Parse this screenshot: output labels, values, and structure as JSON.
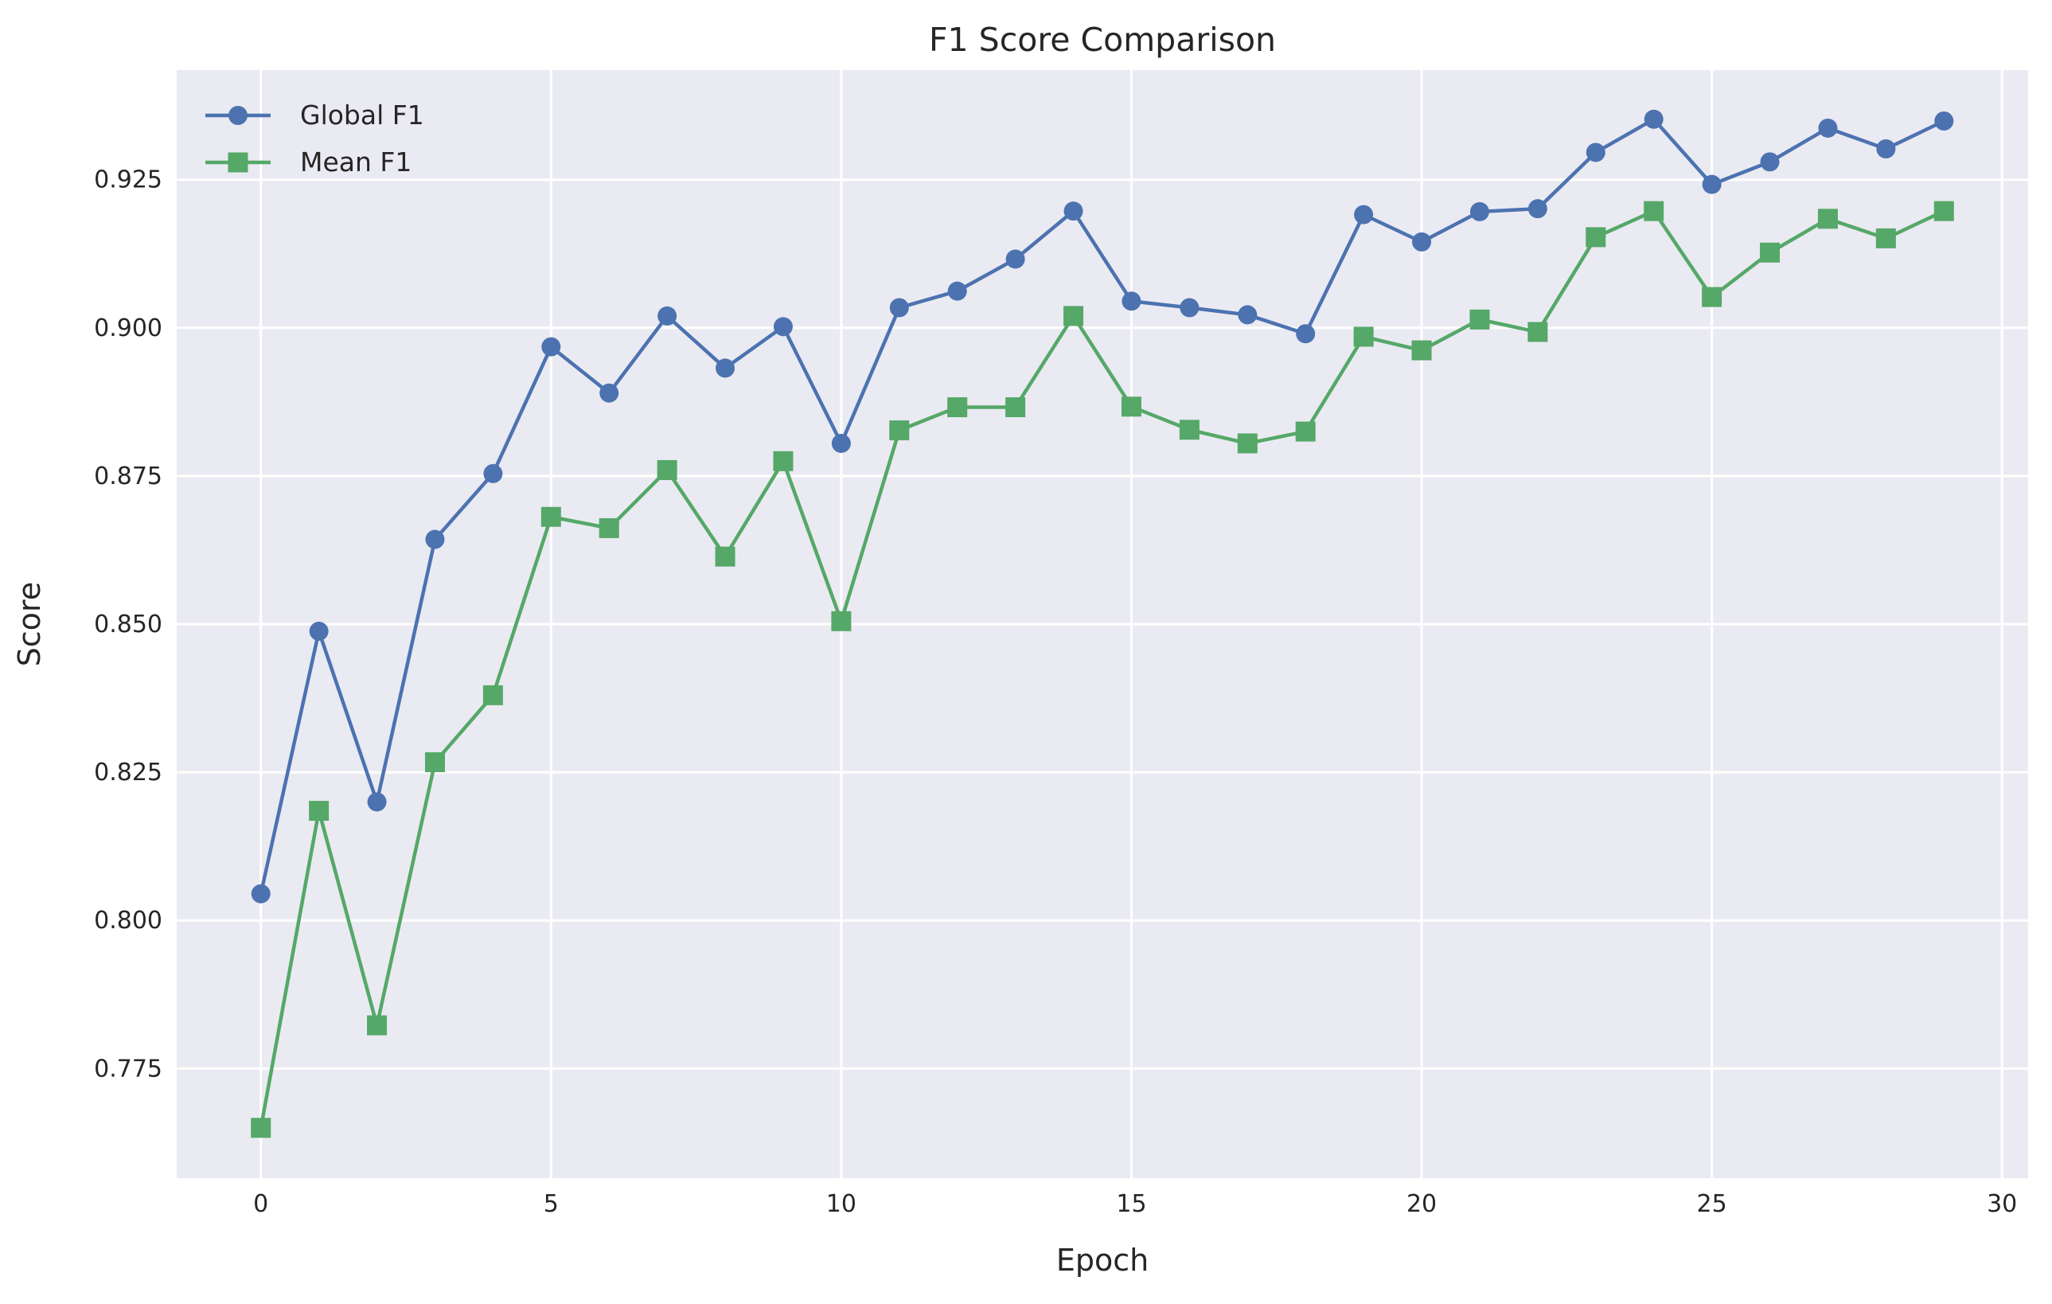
{
  "chart_data": {
    "type": "line",
    "title": "F1 Score Comparison",
    "xlabel": "Epoch",
    "ylabel": "Score",
    "xlim": [
      -1.45,
      30.45
    ],
    "ylim": [
      0.7565,
      0.9435
    ],
    "xticks": [
      0,
      5,
      10,
      15,
      20,
      25,
      30
    ],
    "xtick_labels": [
      "0",
      "5",
      "10",
      "15",
      "20",
      "25",
      "30"
    ],
    "yticks": [
      0.775,
      0.8,
      0.825,
      0.85,
      0.875,
      0.9,
      0.925
    ],
    "ytick_labels": [
      "0.775",
      "0.800",
      "0.825",
      "0.850",
      "0.875",
      "0.900",
      "0.925"
    ],
    "grid": true,
    "legend_position": "top-left",
    "x": [
      0,
      1,
      2,
      3,
      4,
      5,
      6,
      7,
      8,
      9,
      10,
      11,
      12,
      13,
      14,
      15,
      16,
      17,
      18,
      19,
      20,
      21,
      22,
      23,
      24,
      25,
      26,
      27,
      28,
      29
    ],
    "series": [
      {
        "name": "Global F1",
        "color": "#4c72b0",
        "marker": "circle",
        "values": [
          0.8045,
          0.8488,
          0.82,
          0.8643,
          0.8754,
          0.8968,
          0.889,
          0.902,
          0.8932,
          0.9002,
          0.8805,
          0.9034,
          0.9062,
          0.9116,
          0.9197,
          0.9045,
          0.9034,
          0.9022,
          0.899,
          0.9191,
          0.9145,
          0.9196,
          0.9201,
          0.9296,
          0.9352,
          0.9242,
          0.928,
          0.9337,
          0.9302,
          0.9349
        ]
      },
      {
        "name": "Mean F1",
        "color": "#55a868",
        "marker": "square",
        "values": [
          0.765,
          0.8185,
          0.7823,
          0.8267,
          0.838,
          0.8681,
          0.8662,
          0.876,
          0.8614,
          0.8775,
          0.8505,
          0.8827,
          0.8866,
          0.8866,
          0.902,
          0.8867,
          0.8828,
          0.8805,
          0.8825,
          0.8985,
          0.8962,
          0.9014,
          0.8993,
          0.9153,
          0.9197,
          0.9052,
          0.9127,
          0.9184,
          0.9151,
          0.9197
        ]
      }
    ]
  },
  "colors": {
    "plot_background": "#eaeaf2",
    "grid": "#ffffff"
  }
}
